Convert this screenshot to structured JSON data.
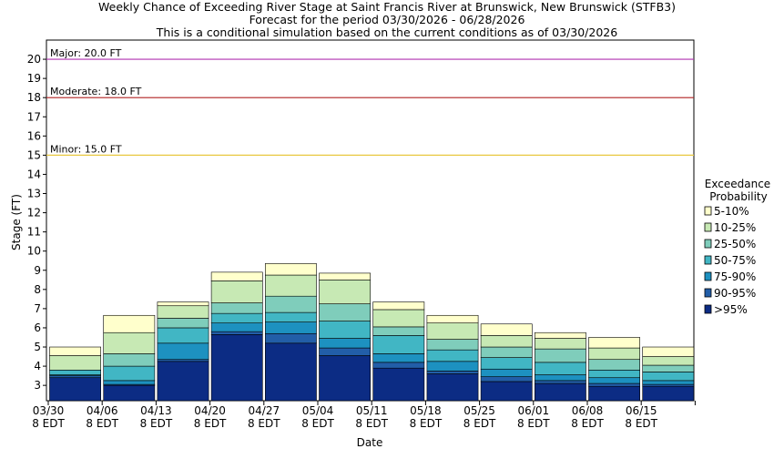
{
  "chart_data": {
    "type": "bar",
    "stacked": true,
    "title_lines": [
      "Weekly Chance of Exceeding River Stage at Saint Francis River at Brunswick, New Brunswick (STFB3)",
      "Forecast for the period 03/30/2026 - 06/28/2026",
      "This is a conditional simulation based on the current conditions as of 03/30/2026"
    ],
    "xlabel": "Date",
    "ylabel": "Stage (FT)",
    "ylim": [
      2.2,
      21
    ],
    "yticks": [
      3,
      4,
      5,
      6,
      7,
      8,
      9,
      10,
      11,
      12,
      13,
      14,
      15,
      16,
      17,
      18,
      19,
      20
    ],
    "grid": false,
    "xtick_dates": [
      "03/30",
      "04/06",
      "04/13",
      "04/20",
      "04/27",
      "05/04",
      "05/11",
      "05/18",
      "05/25",
      "06/01",
      "06/08",
      "06/15"
    ],
    "xtick_sub": "8 EDT",
    "legend": {
      "title_lines": [
        "Exceedance",
        "Probability"
      ],
      "position": "right",
      "items": [
        {
          "label": "5-10%",
          "color": "#ffffcc"
        },
        {
          "label": "10-25%",
          "color": "#c7e9b4"
        },
        {
          "label": "25-50%",
          "color": "#7fcdbb"
        },
        {
          "label": "50-75%",
          "color": "#41b6c4"
        },
        {
          "label": "75-90%",
          "color": "#1d91c0"
        },
        {
          "label": "90-95%",
          "color": "#225ea8"
        },
        {
          "label": ">95%",
          "color": "#0c2c84"
        }
      ]
    },
    "thresholds": [
      {
        "label": "Major: 20.0 FT",
        "value": 20.0,
        "color": "#b030b0"
      },
      {
        "label": "Moderate: 18.0 FT",
        "value": 18.0,
        "color": "#b02020"
      },
      {
        "label": "Minor: 15.0 FT",
        "value": 15.0,
        "color": "#e8c840"
      }
    ],
    "weeks": [
      {
        "start": "03/30",
        "stages": [
          3.4,
          3.5,
          3.55,
          3.8,
          3.8,
          4.55,
          5.0
        ]
      },
      {
        "start": "04/06",
        "stages": [
          3.0,
          3.05,
          3.25,
          4.0,
          4.65,
          5.75,
          6.65
        ]
      },
      {
        "start": "04/13",
        "stages": [
          4.25,
          4.35,
          5.2,
          6.0,
          6.5,
          7.15,
          7.35
        ]
      },
      {
        "start": "04/20",
        "stages": [
          5.65,
          5.8,
          6.25,
          6.75,
          7.3,
          8.45,
          8.9
        ]
      },
      {
        "start": "04/27",
        "stages": [
          5.2,
          5.7,
          6.3,
          6.8,
          7.65,
          8.75,
          9.35
        ]
      },
      {
        "start": "05/04",
        "stages": [
          4.55,
          4.95,
          5.45,
          6.35,
          7.25,
          8.5,
          8.85
        ]
      },
      {
        "start": "05/11",
        "stages": [
          3.9,
          4.2,
          4.65,
          5.6,
          6.05,
          6.95,
          7.35
        ]
      },
      {
        "start": "05/18",
        "stages": [
          3.6,
          3.75,
          4.25,
          4.85,
          5.4,
          6.25,
          6.65
        ]
      },
      {
        "start": "05/25",
        "stages": [
          3.2,
          3.45,
          3.85,
          4.45,
          5.0,
          5.6,
          6.2
        ]
      },
      {
        "start": "06/01",
        "stages": [
          3.1,
          3.25,
          3.55,
          4.2,
          4.9,
          5.45,
          5.75
        ]
      },
      {
        "start": "06/08",
        "stages": [
          2.95,
          3.1,
          3.4,
          3.8,
          4.35,
          4.95,
          5.5
        ]
      },
      {
        "start": "06/15",
        "stages": [
          2.95,
          3.05,
          3.25,
          3.7,
          4.05,
          4.5,
          5.0
        ]
      }
    ]
  }
}
